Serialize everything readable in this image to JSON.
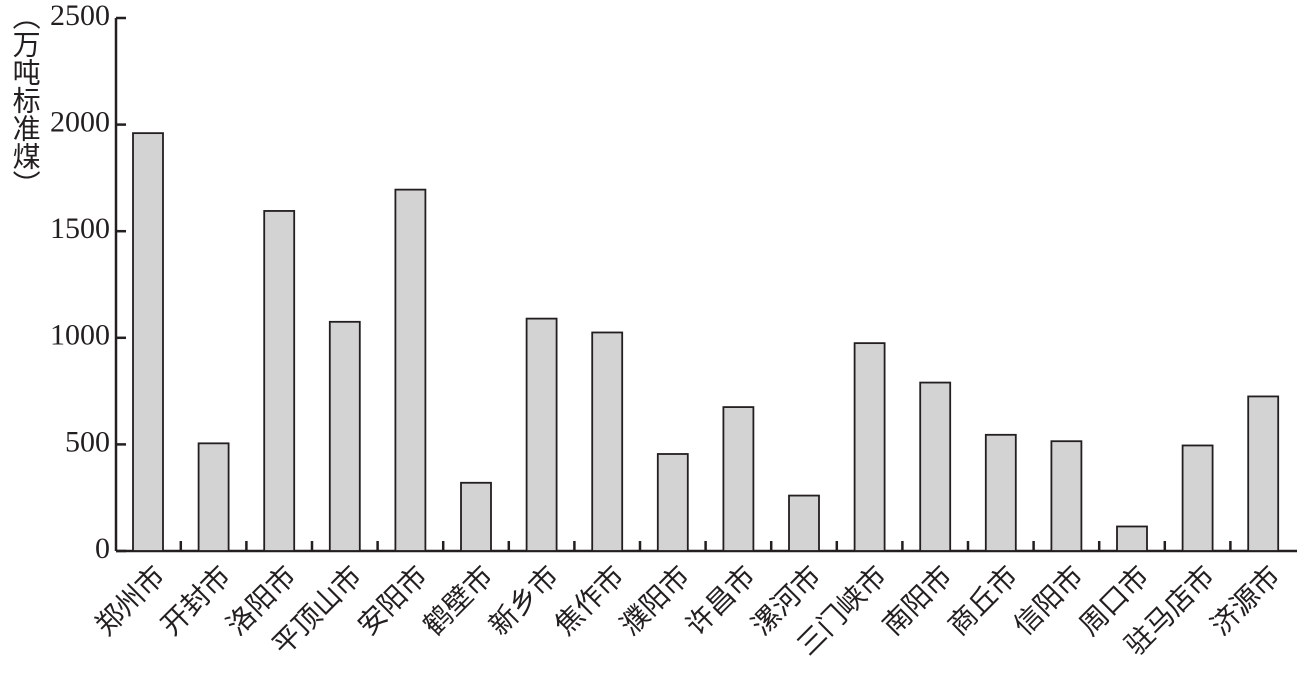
{
  "chart_data": {
    "type": "bar",
    "y_label": "（万吨标准煤）",
    "categories": [
      "郑州市",
      "开封市",
      "洛阳市",
      "平顶山市",
      "安阳市",
      "鹤壁市",
      "新乡市",
      "焦作市",
      "濮阳市",
      "许昌市",
      "漯河市",
      "三门峡市",
      "南阳市",
      "商丘市",
      "信阳市",
      "周口市",
      "驻马店市",
      "济源市"
    ],
    "values": [
      1960,
      505,
      1595,
      1075,
      1695,
      320,
      1090,
      1025,
      455,
      675,
      260,
      975,
      790,
      545,
      515,
      115,
      495,
      725
    ],
    "color": "#d3d3d3",
    "ylim": [
      0,
      2500
    ],
    "yticks": [
      0,
      500,
      1000,
      1500,
      2000,
      2500
    ],
    "grid": false
  }
}
